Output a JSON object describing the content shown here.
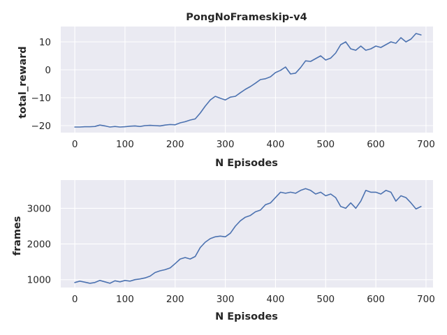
{
  "chart_data": [
    {
      "type": "line",
      "title": "PongNoFrameskip-v4",
      "xlabel": "N Episodes",
      "ylabel": "total_reward",
      "xlim": [
        -28,
        714
      ],
      "ylim": [
        -22.5,
        15.5
      ],
      "xticks": [
        0,
        100,
        200,
        300,
        400,
        500,
        600,
        700
      ],
      "yticks": [
        -20,
        -10,
        0,
        10
      ],
      "grid": true,
      "series": [
        {
          "color": "#4c72b0",
          "x": [
            0,
            10,
            20,
            30,
            40,
            50,
            60,
            70,
            80,
            90,
            100,
            110,
            120,
            130,
            140,
            150,
            160,
            170,
            180,
            190,
            200,
            210,
            220,
            230,
            240,
            250,
            260,
            270,
            280,
            290,
            300,
            310,
            320,
            330,
            340,
            350,
            360,
            370,
            380,
            390,
            400,
            410,
            420,
            430,
            440,
            450,
            460,
            470,
            480,
            490,
            500,
            510,
            520,
            530,
            540,
            550,
            560,
            570,
            580,
            590,
            600,
            610,
            620,
            630,
            640,
            650,
            660,
            670,
            680,
            690
          ],
          "y": [
            -20.5,
            -20.5,
            -20.4,
            -20.4,
            -20.3,
            -19.8,
            -20.1,
            -20.5,
            -20.3,
            -20.5,
            -20.4,
            -20.2,
            -20.1,
            -20.3,
            -20.0,
            -19.9,
            -20.0,
            -20.1,
            -19.8,
            -19.6,
            -19.7,
            -19.0,
            -18.6,
            -18.0,
            -17.6,
            -15.5,
            -13.0,
            -10.8,
            -9.5,
            -10.2,
            -10.8,
            -9.8,
            -9.5,
            -8.2,
            -7.0,
            -6.0,
            -4.8,
            -3.5,
            -3.2,
            -2.5,
            -1.0,
            -0.2,
            1.0,
            -1.5,
            -1.2,
            0.8,
            3.2,
            3.0,
            4.0,
            5.0,
            3.5,
            4.2,
            6.0,
            9.0,
            10.0,
            7.5,
            7.0,
            8.5,
            7.0,
            7.5,
            8.5,
            8.0,
            9.0,
            10.0,
            9.5,
            11.5,
            10.0,
            11.0,
            13.0,
            12.5
          ]
        }
      ]
    },
    {
      "type": "line",
      "title": "",
      "xlabel": "N Episodes",
      "ylabel": "frames",
      "xlim": [
        -28,
        714
      ],
      "ylim": [
        780,
        3790
      ],
      "xticks": [
        0,
        100,
        200,
        300,
        400,
        500,
        600,
        700
      ],
      "yticks": [
        1000,
        2000,
        3000
      ],
      "grid": true,
      "series": [
        {
          "color": "#4c72b0",
          "x": [
            0,
            10,
            20,
            30,
            40,
            50,
            60,
            70,
            80,
            90,
            100,
            110,
            120,
            130,
            140,
            150,
            160,
            170,
            180,
            190,
            200,
            210,
            220,
            230,
            240,
            250,
            260,
            270,
            280,
            290,
            300,
            310,
            320,
            330,
            340,
            350,
            360,
            370,
            380,
            390,
            400,
            410,
            420,
            430,
            440,
            450,
            460,
            470,
            480,
            490,
            500,
            510,
            520,
            530,
            540,
            550,
            560,
            570,
            580,
            590,
            600,
            610,
            620,
            630,
            640,
            650,
            660,
            670,
            680,
            690
          ],
          "y": [
            920,
            960,
            930,
            900,
            920,
            980,
            940,
            900,
            970,
            940,
            980,
            960,
            1000,
            1020,
            1050,
            1100,
            1200,
            1250,
            1280,
            1330,
            1450,
            1580,
            1620,
            1580,
            1650,
            1900,
            2050,
            2150,
            2200,
            2220,
            2200,
            2300,
            2500,
            2650,
            2750,
            2800,
            2900,
            2950,
            3100,
            3150,
            3300,
            3450,
            3420,
            3450,
            3420,
            3500,
            3550,
            3500,
            3400,
            3450,
            3350,
            3400,
            3300,
            3050,
            3000,
            3150,
            3000,
            3200,
            3500,
            3450,
            3450,
            3400,
            3500,
            3450,
            3200,
            3350,
            3300,
            3150,
            2980,
            3050
          ]
        }
      ]
    }
  ]
}
